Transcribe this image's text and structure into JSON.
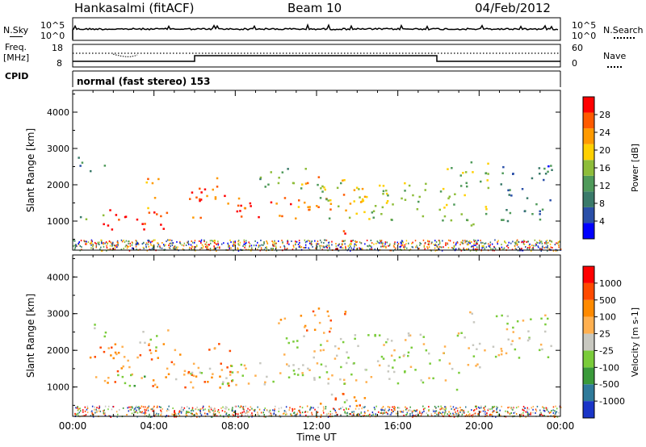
{
  "header": {
    "station": "Hankasalmi (fitACF)",
    "beam": "Beam 10",
    "date": "04/Feb/2012"
  },
  "top_panels": {
    "nsky_label": "N.Sky",
    "nsky_ticks": [
      "10^5",
      "10^0"
    ],
    "nsearch_label": "N.Search",
    "nsearch_ticks": [
      "10^5",
      "10^0"
    ],
    "freq_label_1": "Freq.",
    "freq_label_2": "[MHz]",
    "freq_ticks": [
      "18",
      "8"
    ],
    "nave_label": "Nave",
    "nave_ticks": [
      "60",
      "0"
    ],
    "cpid_label": "CPID",
    "mode_text": "normal (fast stereo) 153"
  },
  "chart_data": [
    {
      "type": "heatmap",
      "name": "power",
      "ylabel": "Slant Range [km]",
      "yticks": [
        1000,
        2000,
        3000,
        4000
      ],
      "ylim": [
        200,
        4600
      ],
      "xlim": [
        0,
        24
      ],
      "colorbar_label": "Power [dB]",
      "colorbar_ticks": [
        "28",
        "24",
        "20",
        "16",
        "12",
        "8",
        "4"
      ],
      "colorbar_colors": [
        "#0000ff",
        "#2a4fa8",
        "#3a7a6a",
        "#4f9a5a",
        "#8ebd3a",
        "#ffd000",
        "#ff9a00",
        "#ff5a00",
        "#ff0000"
      ],
      "regions": [
        {
          "x0": 1.2,
          "x1": 2.6,
          "y0": 700,
          "y1": 1400,
          "level": 8
        },
        {
          "x0": 2.5,
          "x1": 4.8,
          "y0": 750,
          "y1": 1300,
          "level": 8
        },
        {
          "x0": 3.5,
          "x1": 4.2,
          "y0": 1300,
          "y1": 2300,
          "level": 6
        },
        {
          "x0": 5.5,
          "x1": 6.3,
          "y0": 900,
          "y1": 1900,
          "level": 7
        },
        {
          "x0": 6.0,
          "x1": 7.8,
          "y0": 1500,
          "y1": 2300,
          "level": 7
        },
        {
          "x0": 8.0,
          "x1": 12.0,
          "y0": 1100,
          "y1": 1700,
          "level": 7
        },
        {
          "x0": 11.0,
          "x1": 14.5,
          "y0": 1300,
          "y1": 2300,
          "level": 6
        },
        {
          "x0": 13.0,
          "x1": 14.3,
          "y0": 450,
          "y1": 800,
          "level": 8
        },
        {
          "x0": 12.0,
          "x1": 17.5,
          "y0": 1000,
          "y1": 2100,
          "level": 4
        },
        {
          "x0": 0.2,
          "x1": 1.8,
          "y0": 2400,
          "y1": 2800,
          "level": 2
        },
        {
          "x0": 9.0,
          "x1": 11.5,
          "y0": 1900,
          "y1": 2500,
          "level": 3
        },
        {
          "x0": 18.0,
          "x1": 20.5,
          "y0": 900,
          "y1": 2700,
          "level": 4
        },
        {
          "x0": 21.0,
          "x1": 23.5,
          "y0": 1000,
          "y1": 2600,
          "level": 2
        },
        {
          "x0": 0.2,
          "x1": 1.5,
          "y0": 1000,
          "y1": 1250,
          "level": 3
        },
        {
          "x0": 23.0,
          "x1": 23.8,
          "y0": 2400,
          "y1": 2700,
          "level": 1
        }
      ]
    },
    {
      "type": "heatmap",
      "name": "velocity",
      "ylabel": "Slant Range [km]",
      "yticks": [
        1000,
        2000,
        3000,
        4000
      ],
      "ylim": [
        200,
        4600
      ],
      "xlim": [
        0,
        24
      ],
      "xticks": [
        "00:00",
        "04:00",
        "08:00",
        "12:00",
        "16:00",
        "20:00",
        "00:00"
      ],
      "xlabel": "Time UT",
      "colorbar_label": "Velocity [m s-1]",
      "colorbar_ticks": [
        "1000",
        "500",
        "100",
        "25",
        "-25",
        "-100",
        "-500",
        "-1000"
      ],
      "colorbar_colors": [
        "#1a35c8",
        "#2f7a9a",
        "#3a9a3a",
        "#7acc3a",
        "#c8c8c0",
        "#ffb050",
        "#ff8a00",
        "#ff4a00",
        "#ff0000"
      ],
      "regions": [
        {
          "x0": 0.8,
          "x1": 8.0,
          "y0": 1000,
          "y1": 2200,
          "level": 6
        },
        {
          "x0": 3.2,
          "x1": 4.8,
          "y0": 2000,
          "y1": 2600,
          "level": 4
        },
        {
          "x0": 4.5,
          "x1": 19.0,
          "y0": 1100,
          "y1": 1700,
          "level": 4
        },
        {
          "x0": 10.0,
          "x1": 17.5,
          "y0": 1400,
          "y1": 2500,
          "level": 4
        },
        {
          "x0": 12.0,
          "x1": 14.5,
          "y0": 500,
          "y1": 1000,
          "level": 6
        },
        {
          "x0": 18.0,
          "x1": 20.0,
          "y0": 1500,
          "y1": 2500,
          "level": 4
        },
        {
          "x0": 19.5,
          "x1": 23.5,
          "y0": 1800,
          "y1": 3100,
          "level": 4
        },
        {
          "x0": 10.0,
          "x1": 13.5,
          "y0": 2500,
          "y1": 3200,
          "level": 6
        },
        {
          "x0": 0.3,
          "x1": 1.6,
          "y0": 2400,
          "y1": 2800,
          "level": 4
        },
        {
          "x0": 1.8,
          "x1": 3.5,
          "y0": 1000,
          "y1": 1500,
          "level": 3
        },
        {
          "x0": 12.5,
          "x1": 13.5,
          "y0": 600,
          "y1": 900,
          "level": 3
        },
        {
          "x0": 18.8,
          "x1": 19.4,
          "y0": 800,
          "y1": 1100,
          "level": 2
        }
      ]
    }
  ]
}
